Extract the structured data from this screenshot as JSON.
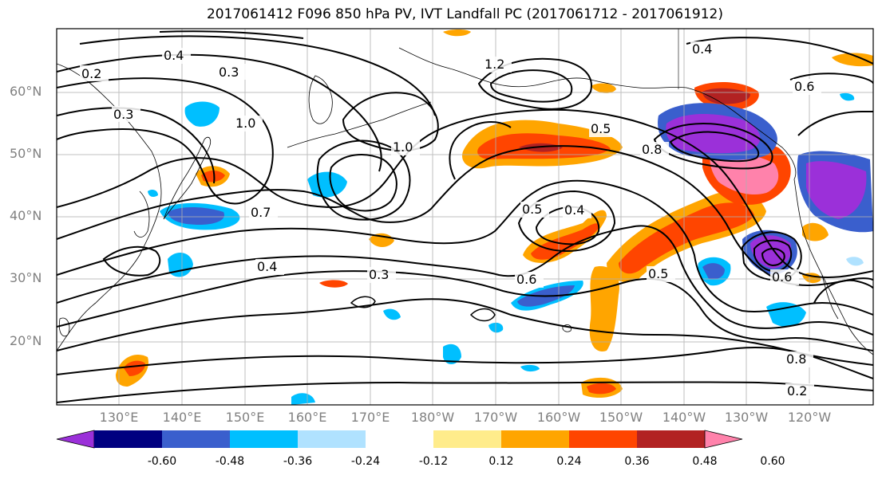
{
  "title": "2017061412 F096 850 hPa PV, IVT Landfall PC (2017061712 - 2017061912)",
  "map": {
    "lat_labels": [
      "60°N",
      "50°N",
      "40°N",
      "30°N",
      "20°N"
    ],
    "lon_labels": [
      "130°E",
      "140°E",
      "150°E",
      "160°E",
      "170°E",
      "180°W",
      "170°W",
      "160°W",
      "150°W",
      "140°W",
      "130°W",
      "120°W"
    ],
    "contour_labels": [
      "0.2",
      "0.3",
      "0.4",
      "0.5",
      "0.6",
      "0.7",
      "0.8",
      "1.0",
      "1.2"
    ]
  },
  "colorbar": {
    "colors": [
      "#9b30d9",
      "#000080",
      "#3a5fcd",
      "#00bfff",
      "#b0e2ff",
      "#ffffff",
      "#ffec8b",
      "#ffa500",
      "#ff4500",
      "#b22222",
      "#ff82ab"
    ],
    "ticks": [
      "-0.60",
      "-0.48",
      "-0.36",
      "-0.24",
      "-0.12",
      "0.12",
      "0.24",
      "0.36",
      "0.48",
      "0.60"
    ]
  }
}
